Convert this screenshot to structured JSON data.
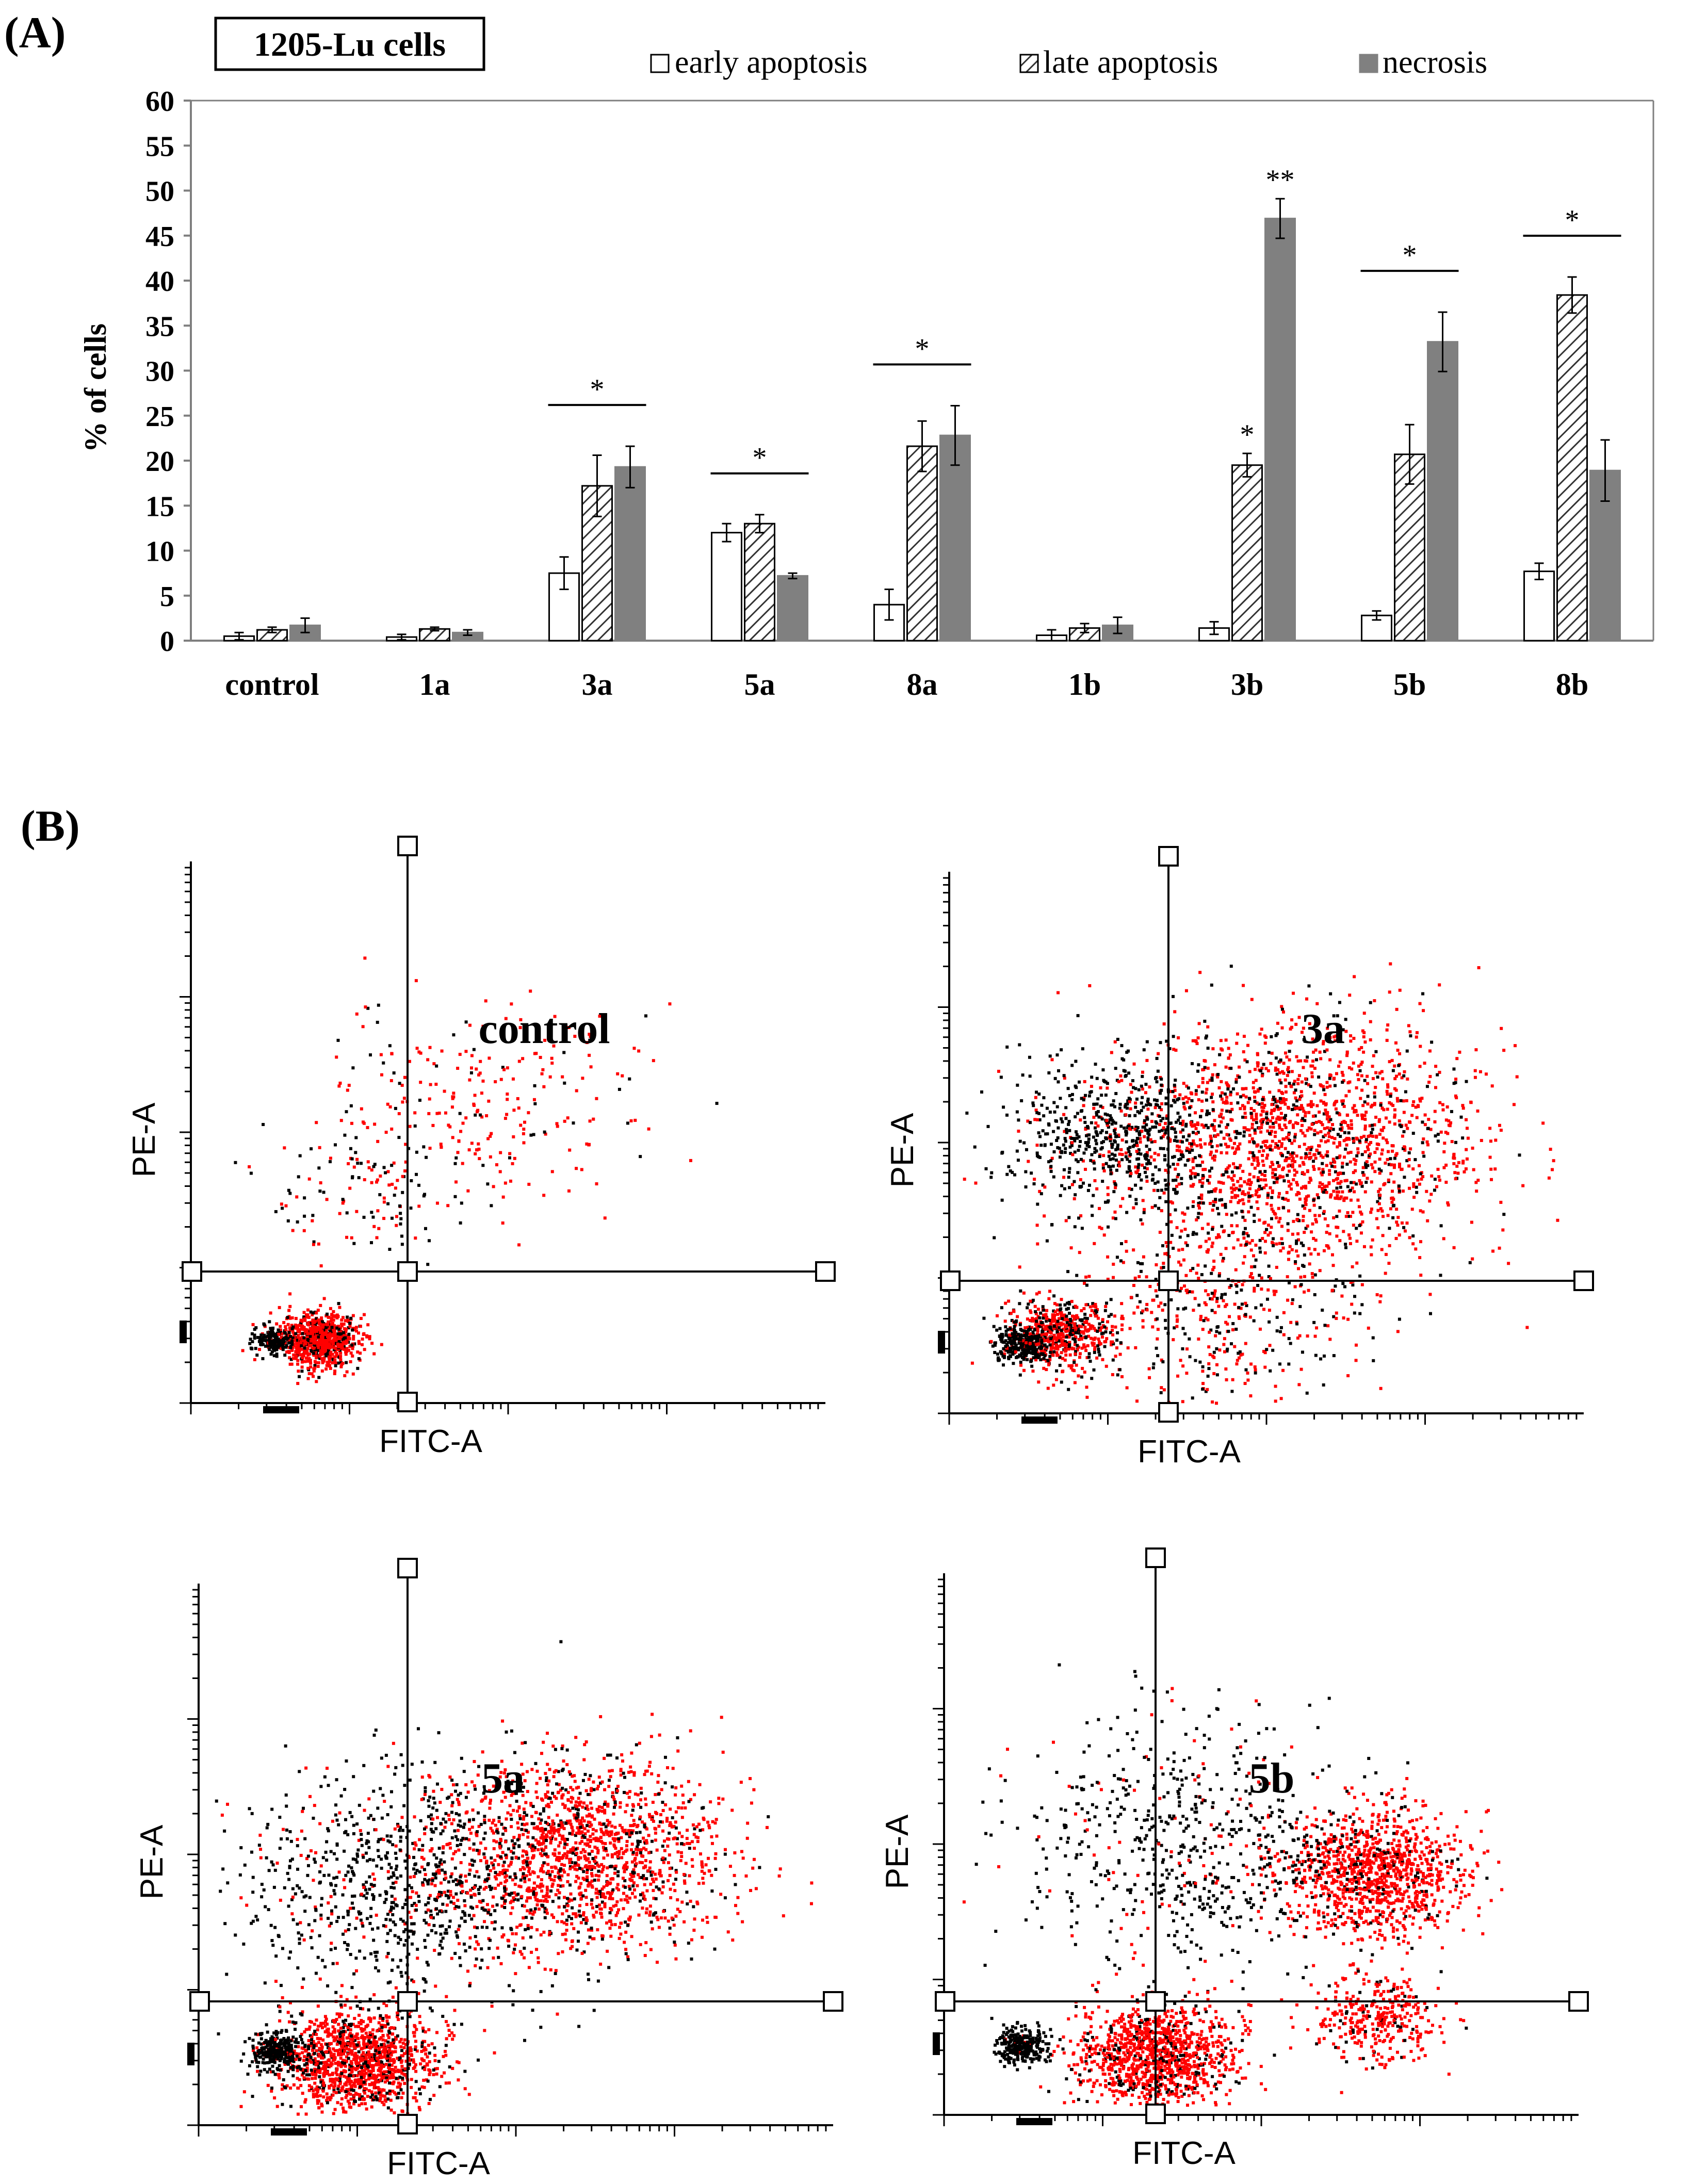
{
  "panel_a_label": "(A)",
  "panel_b_label": "(B)",
  "chart_data": [
    {
      "type": "bar",
      "title": "1205-Lu cells",
      "ylabel": "% of cells",
      "xlabel": "",
      "ylim": [
        0,
        60
      ],
      "yticks": [
        0,
        5,
        10,
        15,
        20,
        25,
        30,
        35,
        40,
        45,
        50,
        55,
        60
      ],
      "categories": [
        "control",
        "1a",
        "3a",
        "5a",
        "8a",
        "1b",
        "3b",
        "5b",
        "8b"
      ],
      "series": [
        {
          "name": "early apoptosis",
          "style": "white",
          "values": [
            0.5,
            0.4,
            7.5,
            12.0,
            4.0,
            0.6,
            1.4,
            2.8,
            7.7
          ],
          "errors": [
            0.4,
            0.3,
            1.8,
            1.0,
            1.7,
            0.6,
            0.7,
            0.5,
            0.9
          ]
        },
        {
          "name": "late apoptosis",
          "style": "hatch",
          "values": [
            1.2,
            1.3,
            17.2,
            13.0,
            21.6,
            1.4,
            19.5,
            20.7,
            38.4
          ],
          "errors": [
            0.3,
            0.2,
            3.4,
            1.0,
            2.8,
            0.5,
            1.3,
            3.3,
            2.0
          ]
        },
        {
          "name": "necrosis",
          "style": "gray",
          "values": [
            1.7,
            0.9,
            19.3,
            7.2,
            22.8,
            1.7,
            46.9,
            33.2,
            18.9
          ],
          "errors": [
            0.8,
            0.3,
            2.3,
            0.3,
            3.3,
            0.9,
            2.2,
            3.3,
            3.4
          ]
        }
      ],
      "annotations": [
        {
          "category": "3a",
          "text": "*",
          "type": "bracket"
        },
        {
          "category": "5a",
          "text": "*",
          "type": "bracket"
        },
        {
          "category": "8a",
          "text": "*",
          "type": "bracket"
        },
        {
          "category": "3b",
          "series": "late apoptosis",
          "text": "*",
          "type": "bar"
        },
        {
          "category": "3b",
          "series": "necrosis",
          "text": "**",
          "type": "bar"
        },
        {
          "category": "5b",
          "text": "*",
          "type": "bracket"
        },
        {
          "category": "8b",
          "text": "*",
          "type": "bracket"
        }
      ],
      "colors": {
        "early": "#ffffff",
        "hatch": "#333333",
        "necrosis": "#808080",
        "axis": "#7f7f7f"
      }
    },
    {
      "type": "scatter",
      "title": "control",
      "xlabel": "FITC-A",
      "ylabel": "PE-A",
      "clusters": [
        {
          "name": "live",
          "x_frac": 0.2,
          "y_frac": 0.12,
          "spread": 0.03,
          "count": 900,
          "red_ratio": 0.8
        },
        {
          "name": "live-core",
          "x_frac": 0.13,
          "y_frac": 0.12,
          "spread": 0.015,
          "count": 180,
          "red_ratio": 0.1
        },
        {
          "name": "late",
          "x_frac": 0.45,
          "y_frac": 0.55,
          "spread": 0.12,
          "count": 260,
          "red_ratio": 0.85
        },
        {
          "name": "tail",
          "x_frac": 0.28,
          "y_frac": 0.38,
          "spread": 0.08,
          "count": 120,
          "red_ratio": 0.4
        }
      ]
    },
    {
      "type": "scatter",
      "title": "3a",
      "xlabel": "FITC-A",
      "ylabel": "PE-A",
      "clusters": [
        {
          "name": "live",
          "x_frac": 0.17,
          "y_frac": 0.15,
          "spread": 0.04,
          "count": 600,
          "red_ratio": 0.65
        },
        {
          "name": "live-core",
          "x_frac": 0.11,
          "y_frac": 0.13,
          "spread": 0.02,
          "count": 250,
          "red_ratio": 0.05
        },
        {
          "name": "late",
          "x_frac": 0.55,
          "y_frac": 0.5,
          "spread": 0.14,
          "count": 1800,
          "red_ratio": 0.8
        },
        {
          "name": "upper-left",
          "x_frac": 0.27,
          "y_frac": 0.52,
          "spread": 0.09,
          "count": 700,
          "red_ratio": 0.15
        },
        {
          "name": "early",
          "x_frac": 0.4,
          "y_frac": 0.2,
          "spread": 0.12,
          "count": 500,
          "red_ratio": 0.55
        }
      ]
    },
    {
      "type": "scatter",
      "title": "5a",
      "xlabel": "FITC-A",
      "ylabel": "PE-A",
      "clusters": [
        {
          "name": "live",
          "x_frac": 0.25,
          "y_frac": 0.12,
          "spread": 0.06,
          "count": 1300,
          "red_ratio": 0.8
        },
        {
          "name": "live-core",
          "x_frac": 0.12,
          "y_frac": 0.14,
          "spread": 0.02,
          "count": 300,
          "red_ratio": 0.05
        },
        {
          "name": "late",
          "x_frac": 0.6,
          "y_frac": 0.5,
          "spread": 0.11,
          "count": 1600,
          "red_ratio": 0.8
        },
        {
          "name": "upper-left",
          "x_frac": 0.32,
          "y_frac": 0.45,
          "spread": 0.13,
          "count": 900,
          "red_ratio": 0.2
        }
      ]
    },
    {
      "type": "scatter",
      "title": "5b",
      "xlabel": "FITC-A",
      "ylabel": "PE-A",
      "clusters": [
        {
          "name": "live",
          "x_frac": 0.33,
          "y_frac": 0.11,
          "spread": 0.06,
          "count": 1200,
          "red_ratio": 0.85
        },
        {
          "name": "live-core",
          "x_frac": 0.12,
          "y_frac": 0.13,
          "spread": 0.02,
          "count": 280,
          "red_ratio": 0.05
        },
        {
          "name": "late",
          "x_frac": 0.68,
          "y_frac": 0.45,
          "spread": 0.07,
          "count": 1100,
          "red_ratio": 0.9
        },
        {
          "name": "early",
          "x_frac": 0.68,
          "y_frac": 0.18,
          "spread": 0.05,
          "count": 350,
          "red_ratio": 0.9
        },
        {
          "name": "upper-left",
          "x_frac": 0.4,
          "y_frac": 0.5,
          "spread": 0.14,
          "count": 700,
          "red_ratio": 0.15
        }
      ]
    }
  ]
}
